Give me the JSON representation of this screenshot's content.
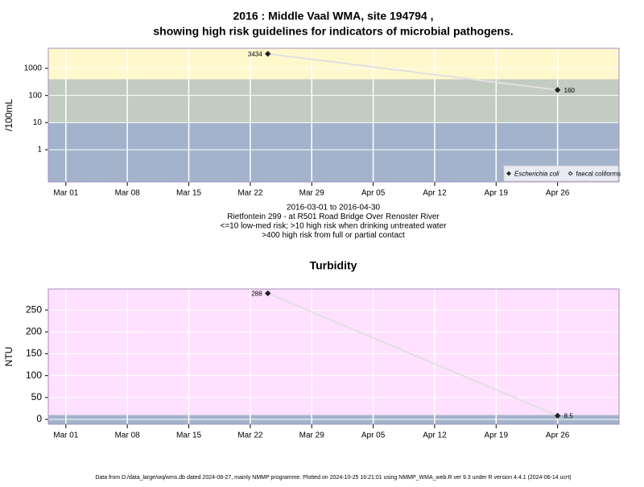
{
  "chart_data": [
    {
      "type": "line",
      "title": [
        "2016 : Middle Vaal WMA, site 194794 ,",
        "showing high risk guidelines for indicators of microbial pathogens."
      ],
      "y_label": "/100mL",
      "log_y": true,
      "ylim": [
        0.065,
        5500
      ],
      "yticks": [
        1,
        10,
        100,
        1000
      ],
      "x_is_date": true,
      "xlim": [
        "2016-02-28",
        "2016-05-03"
      ],
      "xticks": [
        {
          "value": "2016-03-01",
          "label": "Mar 01"
        },
        {
          "value": "2016-03-08",
          "label": "Mar 08"
        },
        {
          "value": "2016-03-15",
          "label": "Mar 15"
        },
        {
          "value": "2016-03-22",
          "label": "Mar 22"
        },
        {
          "value": "2016-03-29",
          "label": "Mar 29"
        },
        {
          "value": "2016-04-05",
          "label": "Apr 05"
        },
        {
          "value": "2016-04-12",
          "label": "Apr 12"
        },
        {
          "value": "2016-04-19",
          "label": "Apr 19"
        },
        {
          "value": "2016-04-26",
          "label": "Apr 26"
        }
      ],
      "grid": true,
      "thresholds": [
        10,
        400
      ],
      "band_colors": [
        "#a3b3cc",
        "#c3ccc0",
        "#fff8cc"
      ],
      "x": [
        "2016-03-24",
        "2016-04-26"
      ],
      "series": [
        {
          "name": "Escherichia coli",
          "color": "#222222",
          "line_color": "#e0e0e0",
          "marker": "filled",
          "values": [
            3434,
            160
          ]
        },
        {
          "name": "faecal coliforms",
          "color": "#222222",
          "line_color": "#e0e0e0",
          "marker": "open",
          "values": [
            null,
            null
          ]
        }
      ],
      "legend": "bottom-right",
      "notes": [
        "2016-03-01 to 2016-04-30",
        "Rietfontein 299 - at R501 Road Bridge Over Renoster River",
        "<=10 low-med risk; >10 high risk when drinking untreated water",
        ">400 high risk from full or partial contact"
      ]
    },
    {
      "type": "line",
      "title": [
        "Turbidity"
      ],
      "y_label": "NTU",
      "log_y": false,
      "ylim": [
        -11,
        298
      ],
      "yticks": [
        0,
        50,
        100,
        150,
        200,
        250
      ],
      "x_is_date": true,
      "xlim": [
        "2016-02-28",
        "2016-05-03"
      ],
      "xticks": [
        {
          "value": "2016-03-01",
          "label": "Mar 01"
        },
        {
          "value": "2016-03-08",
          "label": "Mar 08"
        },
        {
          "value": "2016-03-15",
          "label": "Mar 15"
        },
        {
          "value": "2016-03-22",
          "label": "Mar 22"
        },
        {
          "value": "2016-03-29",
          "label": "Mar 29"
        },
        {
          "value": "2016-04-05",
          "label": "Apr 05"
        },
        {
          "value": "2016-04-12",
          "label": "Apr 12"
        },
        {
          "value": "2016-04-19",
          "label": "Apr 19"
        },
        {
          "value": "2016-04-26",
          "label": "Apr 26"
        }
      ],
      "grid": true,
      "thresholds": [
        10
      ],
      "band_colors": [
        "#a3b3cc",
        "#ffe0ff"
      ],
      "x": [
        "2016-03-24",
        "2016-04-26"
      ],
      "series": [
        {
          "color": "#222222",
          "line_color": "#e0e0e0",
          "marker": "filled",
          "values": [
            288,
            8.5
          ]
        }
      ]
    }
  ],
  "footer": "Data from D:/data_large/wq/wms.db dated 2024-08-27, mainly NMMP programme. Plotted on 2024-10-25 16:21:01 using NMMP_WMA_web.R ver 9.3 under R version 4.4.1 (2024-06-14 ucrt)"
}
